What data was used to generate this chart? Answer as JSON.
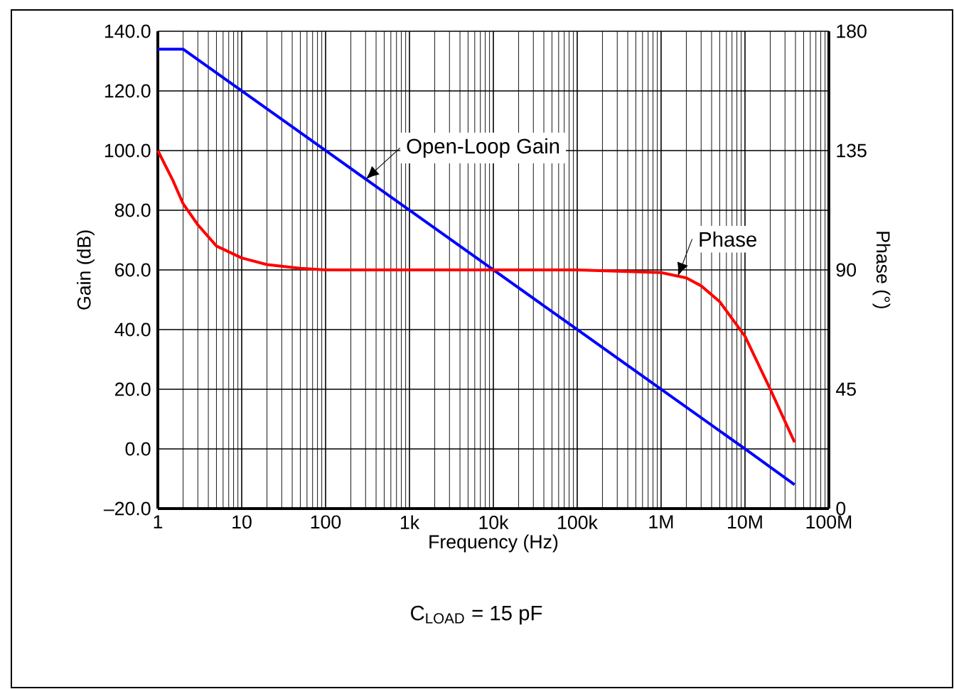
{
  "chart_data": {
    "type": "line",
    "xlabel": "Frequency (Hz)",
    "ylabel": "Gain (dB)",
    "y2label": "Phase (°)",
    "log": "x",
    "grid": true,
    "xlim": [
      1,
      100000000
    ],
    "xticks": [
      1,
      10,
      100,
      {
        "value": 1000,
        "label": "1k"
      },
      {
        "value": 10000,
        "label": "10k"
      },
      {
        "value": 100000,
        "label": "100k"
      },
      {
        "value": 1000000,
        "label": "1M"
      },
      {
        "value": 10000000,
        "label": "10M"
      },
      {
        "value": 100000000,
        "label": "100M"
      }
    ],
    "ylim": [
      -20,
      140
    ],
    "yticks": [
      {
        "value": -20,
        "label": "–20.0"
      },
      {
        "value": 0,
        "label": "0.0"
      },
      {
        "value": 20,
        "label": "20.0"
      },
      {
        "value": 40,
        "label": "40.0"
      },
      {
        "value": 60,
        "label": "60.0"
      },
      {
        "value": 80,
        "label": "80.0"
      },
      {
        "value": 100,
        "label": "100.0"
      },
      {
        "value": 120,
        "label": "120.0"
      },
      {
        "value": 140,
        "label": "140.0"
      }
    ],
    "y2lim": [
      0,
      180
    ],
    "y2ticks": [
      0,
      45,
      90,
      135,
      180
    ],
    "series": [
      {
        "name": "Open-Loop Gain",
        "color": "#0000ff",
        "x": [
          1,
          2,
          10,
          100,
          1000,
          10000,
          100000,
          1000000,
          10000000,
          39000000
        ],
        "values": [
          134,
          134,
          120,
          100,
          80,
          60,
          40,
          20,
          0,
          -12
        ]
      },
      {
        "name": "Phase",
        "color": "#ff0000",
        "axis": "y2",
        "x": [
          1,
          1.5,
          2,
          3,
          5,
          10,
          20,
          50,
          100,
          1000,
          100000,
          1000000,
          2000000,
          3000000,
          5000000,
          10000000,
          20000000,
          39000000
        ],
        "values": [
          135,
          124,
          115,
          107,
          99,
          94.5,
          92,
          90.6,
          90,
          90,
          90,
          89,
          87,
          84,
          78,
          65,
          45,
          25
        ]
      }
    ],
    "annotations": [
      "C$_{LOAD}$ = 15 pF"
    ]
  }
}
